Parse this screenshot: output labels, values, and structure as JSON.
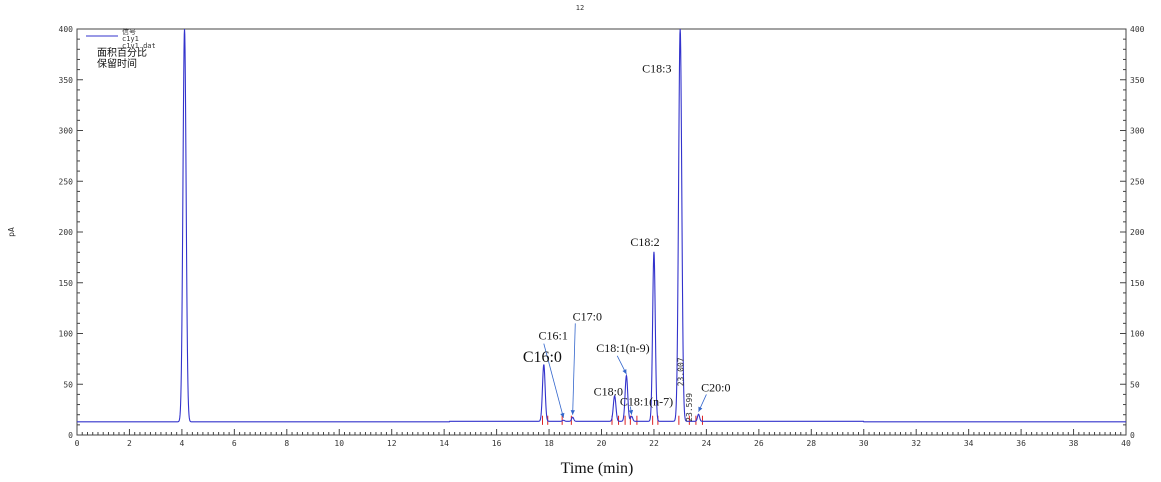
{
  "chart_data": {
    "type": "line",
    "title": "12",
    "xlabel": "Time (min)",
    "ylabel": "pA",
    "xlim": [
      0,
      40
    ],
    "ylim": [
      0,
      400
    ],
    "x_ticks": [
      "0",
      "2",
      "4",
      "6",
      "8",
      "10",
      "12",
      "14",
      "16",
      "18",
      "20",
      "22",
      "24",
      "26",
      "28",
      "30",
      "32",
      "34",
      "36",
      "38",
      "40"
    ],
    "y_ticks": [
      "0",
      "50",
      "100",
      "150",
      "200",
      "250",
      "300",
      "350",
      "400"
    ],
    "grid": false,
    "baseline": 13,
    "legend": {
      "lines": [
        "信号",
        "c1y1",
        "c1y1.dat"
      ],
      "cjk_lines": [
        "面积百分比",
        "保留时间"
      ]
    },
    "series": [
      {
        "color": "#3333cc",
        "peaks": [
          {
            "rt": 4.1,
            "height": 400,
            "width": 0.06
          },
          {
            "rt": 17.8,
            "height": 69,
            "width": 0.05
          },
          {
            "rt": 18.55,
            "height": 14,
            "width": 0.04
          },
          {
            "rt": 18.9,
            "height": 17,
            "width": 0.04
          },
          {
            "rt": 20.5,
            "height": 38,
            "width": 0.05
          },
          {
            "rt": 20.95,
            "height": 58,
            "width": 0.05
          },
          {
            "rt": 21.15,
            "height": 18,
            "width": 0.04
          },
          {
            "rt": 22.0,
            "height": 180,
            "width": 0.05
          },
          {
            "rt": 23.0,
            "height": 400,
            "width": 0.06
          },
          {
            "rt": 23.7,
            "height": 20,
            "width": 0.04
          }
        ]
      }
    ],
    "integration_marks": [
      17.75,
      17.95,
      18.5,
      18.85,
      20.4,
      20.65,
      20.9,
      21.1,
      21.35,
      21.95,
      22.15,
      22.95,
      23.35,
      23.6,
      23.85
    ],
    "peak_labels": [
      {
        "text": "C16:0",
        "x": 17.0,
        "y": 72,
        "big": true
      },
      {
        "text": "C16:1",
        "x": 17.6,
        "y": 94,
        "big": false
      },
      {
        "text": "C17:0",
        "x": 18.9,
        "y": 113,
        "big": false
      },
      {
        "text": "C18:1(n-9)",
        "x": 19.8,
        "y": 82,
        "big": false
      },
      {
        "text": "C18:0",
        "x": 19.7,
        "y": 39,
        "big": false
      },
      {
        "text": "C18:1(n-7)",
        "x": 20.7,
        "y": 29,
        "big": false
      },
      {
        "text": "C18:2",
        "x": 21.1,
        "y": 186,
        "big": false
      },
      {
        "text": "C18:3",
        "x": 21.55,
        "y": 357,
        "big": false
      },
      {
        "text": "C20:0",
        "x": 23.8,
        "y": 43,
        "big": false
      }
    ],
    "rt_labels": [
      {
        "text": "23.007",
        "x": 23.12,
        "y": 48
      },
      {
        "text": "23.599",
        "x": 23.45,
        "y": 13
      }
    ],
    "annotation_lines": [
      {
        "from": [
          17.8,
          90
        ],
        "to": [
          18.55,
          17
        ]
      },
      {
        "from": [
          19.0,
          110
        ],
        "to": [
          18.9,
          20
        ]
      },
      {
        "from": [
          20.6,
          78
        ],
        "to": [
          20.95,
          60
        ]
      },
      {
        "from": [
          21.1,
          28
        ],
        "to": [
          21.15,
          20
        ]
      },
      {
        "from": [
          24.0,
          40
        ],
        "to": [
          23.7,
          23
        ]
      }
    ]
  }
}
